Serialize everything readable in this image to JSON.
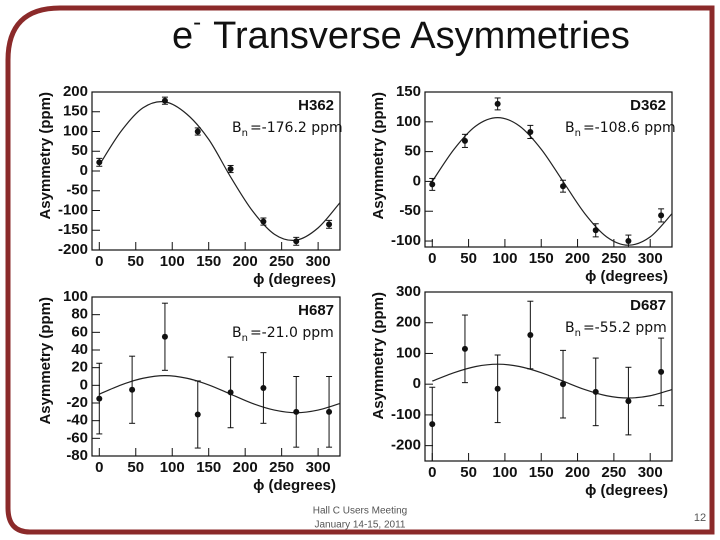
{
  "slide": {
    "title": {
      "main": "e",
      "sup": "-",
      "rest": "Transverse Asymmetries"
    },
    "footer": [
      "Hall C Users Meeting",
      "January 14-15, 2011"
    ],
    "page_number": "12"
  },
  "chart_data": [
    {
      "type": "scatter",
      "label": "H362",
      "annotation": {
        "main": "B",
        "sub": "n",
        "rest": "=-176.2 ppm"
      },
      "xlabel": "ϕ (degrees)",
      "ylabel": "Asymmetry (ppm)",
      "x": [
        0,
        90,
        135,
        180,
        225,
        270,
        315
      ],
      "series": [
        {
          "color": "#111111",
          "values": [
            22,
            178,
            100,
            5,
            -128,
            -178,
            -135
          ],
          "errors": [
            10,
            9,
            9,
            9,
            9,
            10,
            10
          ]
        }
      ],
      "fit": {
        "color": "#222222",
        "x": [
          0,
          30,
          60,
          90,
          120,
          150,
          180,
          210,
          240,
          270,
          300,
          330
        ],
        "values": [
          15,
          101,
          160,
          175,
          144,
          80,
          -15,
          -101,
          -160,
          -175,
          -144,
          -80
        ]
      },
      "xlim": [
        -10,
        330
      ],
      "ylim": [
        -200,
        200
      ],
      "xticks": [
        0,
        50,
        100,
        150,
        200,
        250,
        300
      ],
      "yticks": [
        -200,
        -150,
        -100,
        -50,
        0,
        50,
        100,
        150,
        200
      ]
    },
    {
      "type": "scatter",
      "label": "D362",
      "annotation": {
        "main": "B",
        "sub": "n",
        "rest": "=-108.6 ppm"
      },
      "xlabel": "ϕ (degrees)",
      "ylabel": "Asymmetry (ppm)",
      "x": [
        0,
        45,
        90,
        135,
        180,
        225,
        270,
        315
      ],
      "series": [
        {
          "color": "#111111",
          "values": [
            -5,
            68,
            130,
            83,
            -8,
            -82,
            -100,
            -57
          ],
          "errors": [
            10,
            11,
            10,
            11,
            10,
            11,
            10,
            11
          ]
        }
      ],
      "fit": {
        "color": "#222222",
        "x": [
          0,
          30,
          60,
          90,
          120,
          150,
          180,
          210,
          240,
          270,
          300,
          330
        ],
        "values": [
          0,
          54,
          93,
          107,
          93,
          54,
          0,
          -54,
          -93,
          -107,
          -93,
          -54
        ]
      },
      "xlim": [
        -10,
        330
      ],
      "ylim": [
        -110,
        150
      ],
      "xticks": [
        0,
        50,
        100,
        150,
        200,
        250,
        300
      ],
      "yticks": [
        -100,
        -50,
        0,
        50,
        100,
        150
      ]
    },
    {
      "type": "scatter",
      "label": "H687",
      "annotation": {
        "main": "B",
        "sub": "n",
        "rest": "=-21.0 ppm"
      },
      "xlabel": "ϕ (degrees)",
      "ylabel": "Asymmetry (ppm)",
      "x": [
        0,
        45,
        90,
        135,
        180,
        225,
        270,
        315
      ],
      "series": [
        {
          "color": "#111111",
          "values": [
            -15,
            -5,
            55,
            -33,
            -8,
            -3,
            -30,
            -30
          ],
          "errors": [
            40,
            38,
            38,
            38,
            40,
            40,
            40,
            40
          ]
        }
      ],
      "fit": {
        "color": "#222222",
        "x": [
          0,
          30,
          60,
          90,
          120,
          150,
          180,
          210,
          240,
          270,
          300,
          330
        ],
        "values": [
          -10,
          0.5,
          8,
          11,
          8,
          0.5,
          -10,
          -20.5,
          -28,
          -31,
          -28,
          -20.5
        ]
      },
      "xlim": [
        -10,
        330
      ],
      "ylim": [
        -80,
        100
      ],
      "xticks": [
        0,
        50,
        100,
        150,
        200,
        250,
        300
      ],
      "yticks": [
        -80,
        -60,
        -40,
        -20,
        0,
        20,
        40,
        60,
        80,
        100
      ]
    },
    {
      "type": "scatter",
      "label": "D687",
      "annotation": {
        "main": "B",
        "sub": "n",
        "rest": "=-55.2 ppm"
      },
      "xlabel": "ϕ (degrees)",
      "ylabel": "Asymmetry (ppm)",
      "x": [
        0,
        45,
        90,
        135,
        180,
        225,
        270,
        315
      ],
      "series": [
        {
          "color": "#111111",
          "values": [
            -130,
            115,
            -15,
            160,
            0,
            -25,
            -55,
            40
          ],
          "errors": [
            120,
            110,
            110,
            110,
            110,
            110,
            110,
            110
          ]
        }
      ],
      "fit": {
        "color": "#222222",
        "x": [
          0,
          30,
          60,
          90,
          120,
          150,
          180,
          210,
          240,
          270,
          300,
          330
        ],
        "values": [
          10,
          37.5,
          57.6,
          65,
          57.6,
          37.5,
          10,
          -17.5,
          -37.6,
          -45,
          -37.6,
          -17.5
        ]
      },
      "xlim": [
        -10,
        330
      ],
      "ylim": [
        -250,
        300
      ],
      "xticks": [
        0,
        50,
        100,
        150,
        200,
        250,
        300
      ],
      "yticks": [
        -200,
        -100,
        0,
        100,
        200,
        300
      ]
    }
  ]
}
